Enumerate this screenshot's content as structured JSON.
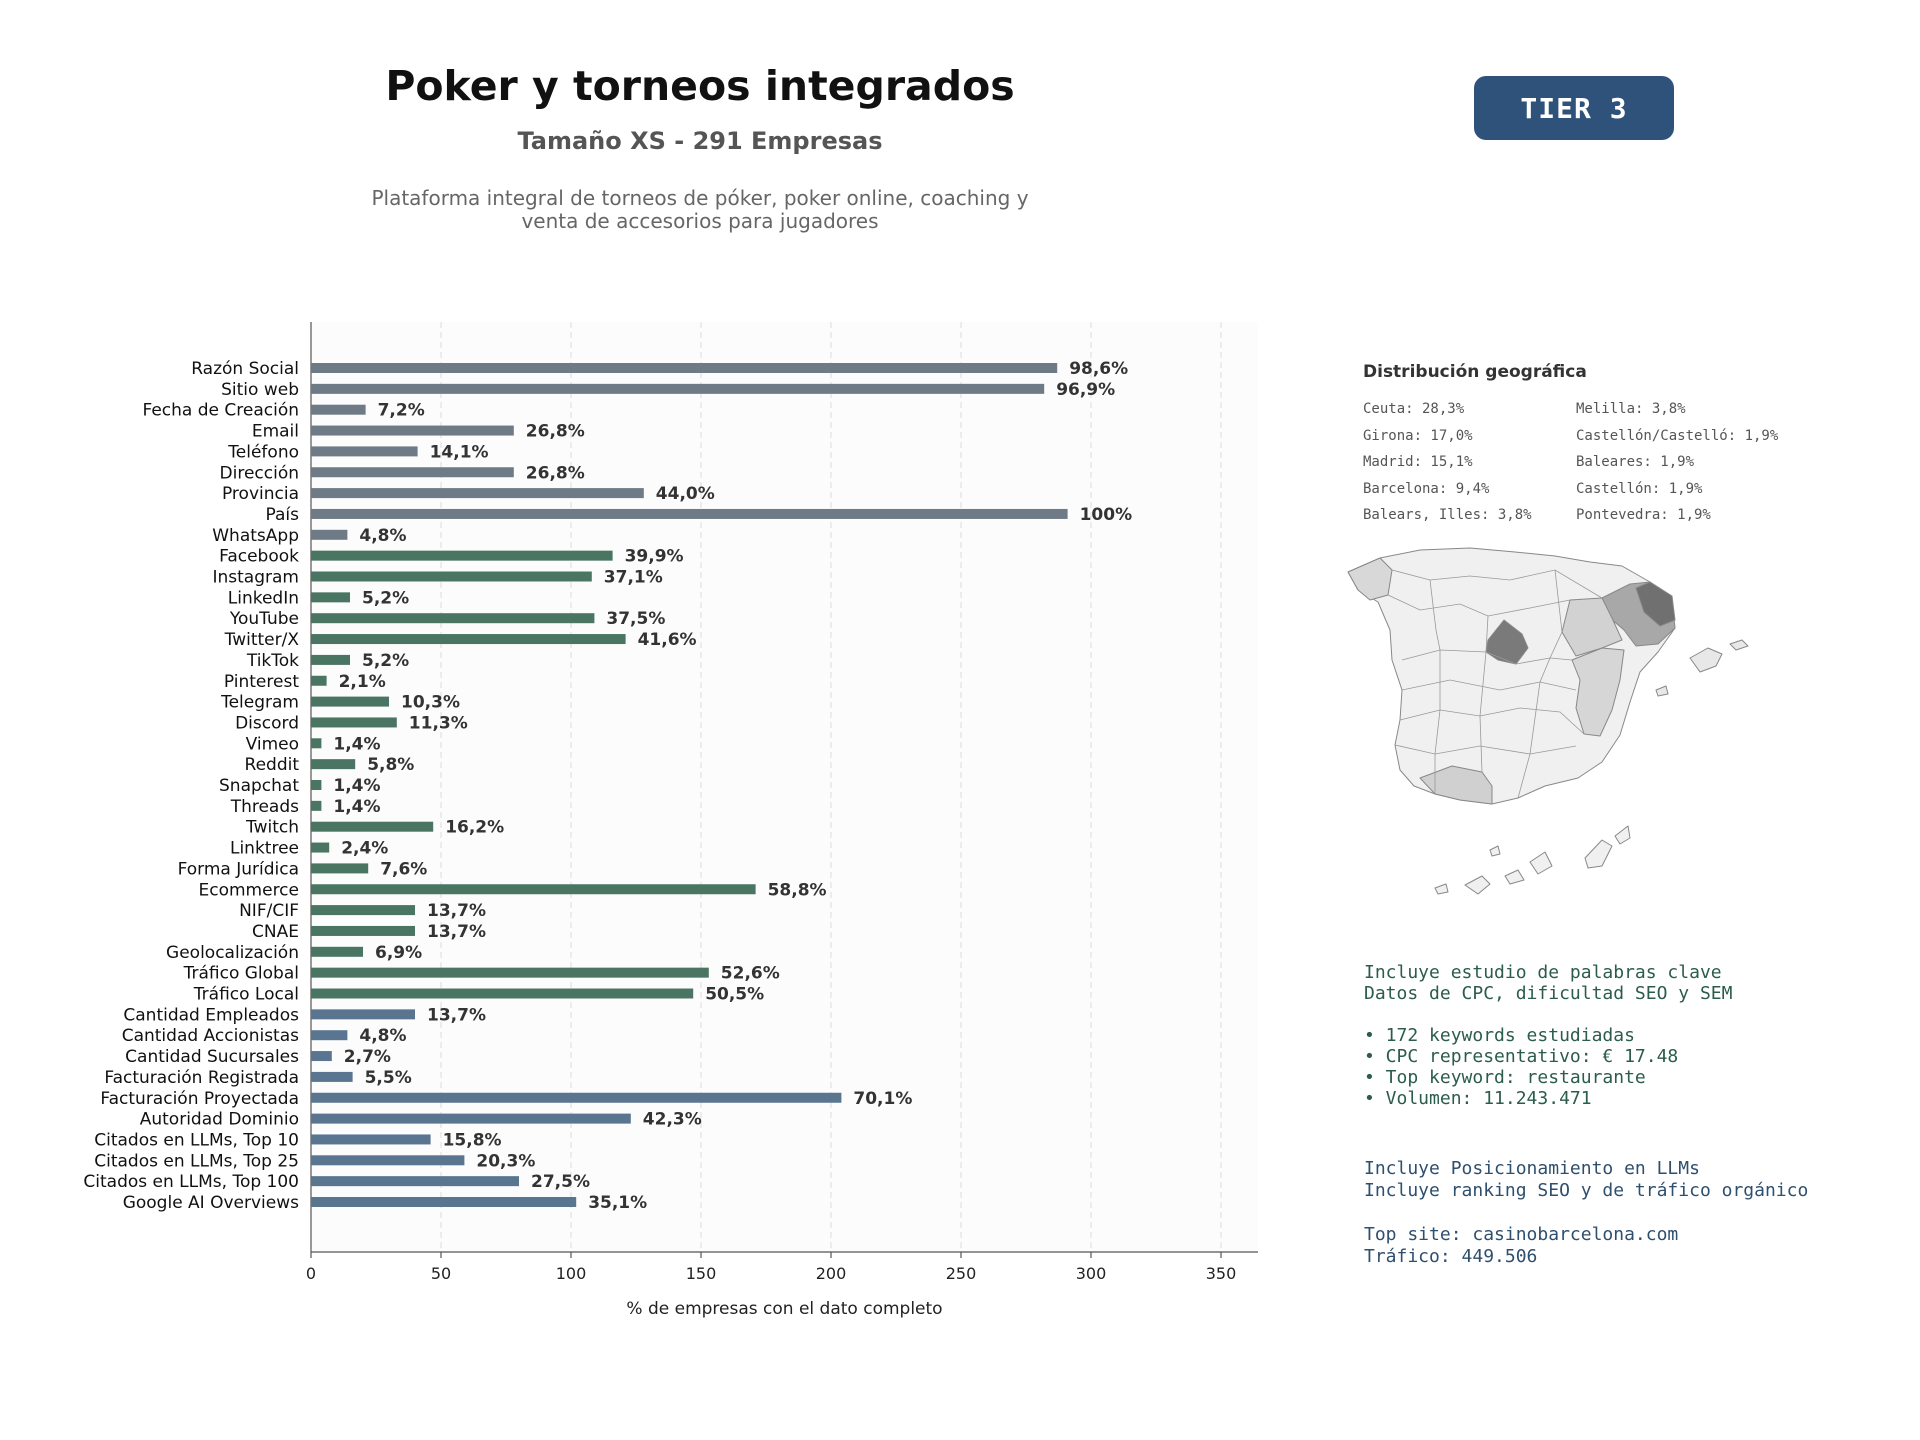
{
  "header": {
    "title": "Poker y torneos integrados",
    "subtitle": "Tamaño XS - 291 Empresas",
    "description_line1": "Plataforma integral de torneos de póker, poker online, coaching y",
    "description_line2": "venta de accesorios para jugadores",
    "tier": "TIER 3"
  },
  "chart_data": {
    "type": "bar",
    "orientation": "horizontal",
    "xlabel": "% de empresas con el dato completo",
    "xlim": [
      0,
      365
    ],
    "xticks": [
      0,
      50,
      100,
      150,
      200,
      250,
      300,
      350
    ],
    "grid": "vertical dashed",
    "colors": {
      "gray": "#6e7a85",
      "green": "#4a7563",
      "blue": "#5a7590"
    },
    "categories": [
      "Razón Social",
      "Sitio web",
      "Fecha de Creación",
      "Email",
      "Teléfono",
      "Dirección",
      "Provincia",
      "País",
      "WhatsApp",
      "Facebook",
      "Instagram",
      "LinkedIn",
      "YouTube",
      "Twitter/X",
      "TikTok",
      "Pinterest",
      "Telegram",
      "Discord",
      "Vimeo",
      "Reddit",
      "Snapchat",
      "Threads",
      "Twitch",
      "Linktree",
      "Forma Jurídica",
      "Ecommerce",
      "NIF/CIF",
      "CNAE",
      "Geolocalización",
      "Tráfico Global",
      "Tráfico Local",
      "Cantidad Empleados",
      "Cantidad Accionistas",
      "Cantidad Sucursales",
      "Facturación Registrada",
      "Facturación Proyectada",
      "Autoridad Dominio",
      "Citados en LLMs, Top 10",
      "Citados en LLMs, Top 25",
      "Citados en LLMs, Top 100",
      "Google AI Overviews"
    ],
    "values": [
      287,
      282,
      21,
      78,
      41,
      78,
      128,
      291,
      14,
      116,
      108,
      15,
      109,
      121,
      15,
      6,
      30,
      33,
      4,
      17,
      4,
      4,
      47,
      7,
      22,
      171,
      40,
      40,
      20,
      153,
      147,
      40,
      14,
      8,
      16,
      204,
      123,
      46,
      59,
      80,
      102
    ],
    "labels": [
      "98,6%",
      "96,9%",
      "7,2%",
      "26,8%",
      "14,1%",
      "26,8%",
      "44,0%",
      "100%",
      "4,8%",
      "39,9%",
      "37,1%",
      "5,2%",
      "37,5%",
      "41,6%",
      "5,2%",
      "2,1%",
      "10,3%",
      "11,3%",
      "1,4%",
      "5,8%",
      "1,4%",
      "1,4%",
      "16,2%",
      "2,4%",
      "7,6%",
      "58,8%",
      "13,7%",
      "13,7%",
      "6,9%",
      "52,6%",
      "50,5%",
      "13,7%",
      "4,8%",
      "2,7%",
      "5,5%",
      "70,1%",
      "42,3%",
      "15,8%",
      "20,3%",
      "27,5%",
      "35,1%"
    ],
    "color_groups": [
      "gray",
      "gray",
      "gray",
      "gray",
      "gray",
      "gray",
      "gray",
      "gray",
      "gray",
      "green",
      "green",
      "green",
      "green",
      "green",
      "green",
      "green",
      "green",
      "green",
      "green",
      "green",
      "green",
      "green",
      "green",
      "green",
      "green",
      "green",
      "green",
      "green",
      "green",
      "green",
      "green",
      "blue",
      "blue",
      "blue",
      "blue",
      "blue",
      "blue",
      "blue",
      "blue",
      "blue",
      "blue"
    ]
  },
  "geo": {
    "title": "Distribución geográfica",
    "left": [
      "Ceuta: 28,3%",
      "Girona: 17,0%",
      "Madrid: 15,1%",
      "Barcelona: 9,4%",
      "Balears, Illes: 3,8%"
    ],
    "right": [
      "Melilla: 3,8%",
      "Castellón/Castelló: 1,9%",
      "Baleares: 1,9%",
      "Castellón: 1,9%",
      "Pontevedra: 1,9%"
    ]
  },
  "seo": {
    "line1": "Incluye estudio de palabras clave",
    "line2": "Datos de CPC, dificultad SEO y SEM",
    "bullet1": "• 172 keywords estudiadas",
    "bullet2": "• CPC representativo: € 17.48",
    "bullet3": "• Top keyword: restaurante",
    "bullet4": "• Volumen: 11.243.471"
  },
  "llm": {
    "line1": "Incluye Posicionamiento en LLMs",
    "line2": "Incluye ranking SEO y de tráfico orgánico",
    "top_site": "Top site: casinobarcelona.com",
    "traffic": "Tráfico: 449.506"
  }
}
